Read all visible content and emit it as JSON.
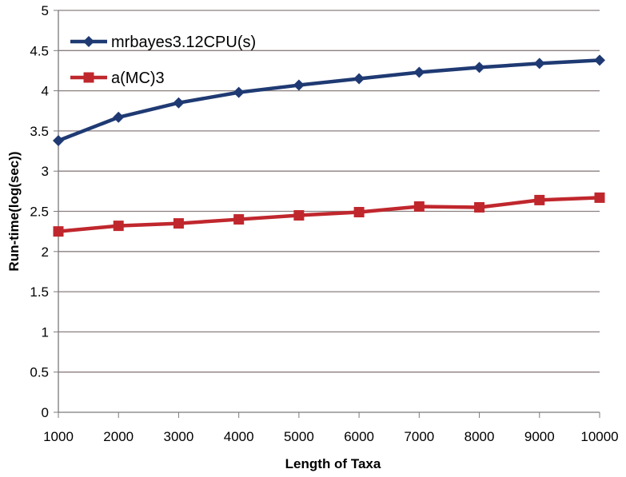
{
  "chart_data": {
    "type": "line",
    "title": "",
    "xlabel": "Length of Taxa",
    "ylabel": "Run-time(log(sec))",
    "x": [
      1000,
      2000,
      3000,
      4000,
      5000,
      6000,
      7000,
      8000,
      9000,
      10000
    ],
    "x_tick_labels": [
      "1000",
      "2000",
      "3000",
      "4000",
      "5000",
      "6000",
      "7000",
      "8000",
      "9000",
      "10000"
    ],
    "ylim": [
      0,
      5
    ],
    "y_tick_labels": [
      "0",
      "0.5",
      "1",
      "1.5",
      "2",
      "2.5",
      "3",
      "3.5",
      "4",
      "4.5",
      "5"
    ],
    "grid": "horizontal",
    "legend_position": "top-left",
    "series": [
      {
        "name": "mrbayes3.12CPU(s)",
        "color": "#1f3a73",
        "marker": "diamond",
        "values": [
          3.38,
          3.67,
          3.85,
          3.98,
          4.07,
          4.15,
          4.23,
          4.29,
          4.34,
          4.38
        ]
      },
      {
        "name": "a(MC)3",
        "color": "#c0272d",
        "marker": "square",
        "values": [
          2.25,
          2.32,
          2.35,
          2.4,
          2.45,
          2.49,
          2.56,
          2.55,
          2.64,
          2.67
        ]
      }
    ]
  }
}
